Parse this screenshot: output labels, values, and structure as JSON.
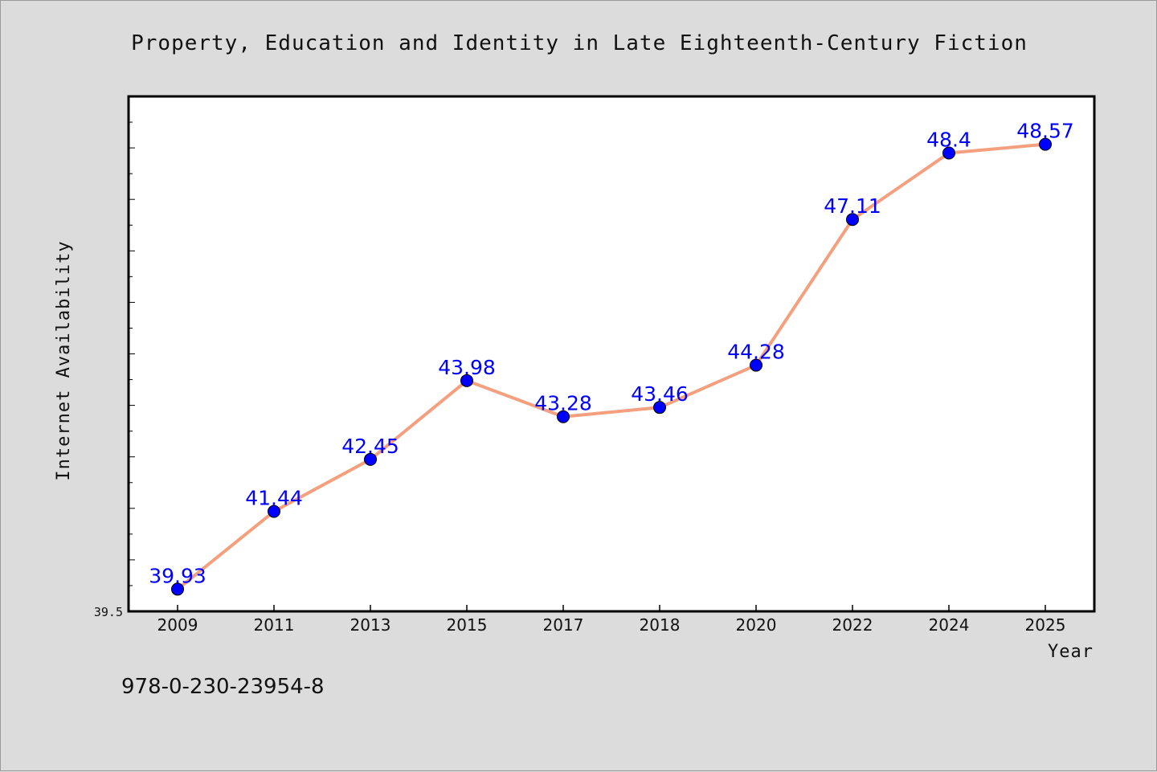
{
  "chart_data": {
    "type": "line",
    "title": "Property, Education and Identity in Late Eighteenth-Century Fiction",
    "xlabel": "Year",
    "ylabel": "Internet Availability",
    "categories": [
      "2009",
      "2011",
      "2013",
      "2015",
      "2017",
      "2018",
      "2020",
      "2022",
      "2024",
      "2025"
    ],
    "series": [
      {
        "values": [
          39.93,
          41.44,
          42.45,
          43.98,
          43.28,
          43.46,
          44.28,
          47.11,
          48.4,
          48.57
        ],
        "labels": [
          "39.93",
          "41.44",
          "42.45",
          "43.98",
          "43.28",
          "43.46",
          "44.28",
          "47.11",
          "48.4",
          "48.57"
        ]
      }
    ],
    "ylim": [
      39.5,
      49.5
    ],
    "y_tick_label": "39.5",
    "grid": false,
    "line_color": "#f4a07f",
    "marker_color": "#0000ff",
    "label_color": "#0000ff"
  },
  "footer": {
    "isbn": "978-0-230-23954-8"
  }
}
